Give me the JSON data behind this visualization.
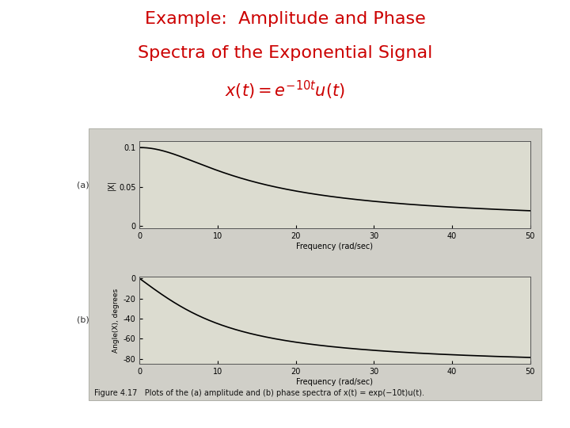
{
  "title_line1": "Example:  Amplitude and Phase",
  "title_line2": "Spectra of the Exponential Signal",
  "title_color": "#cc0000",
  "title_fontsize": 16,
  "formula": "$x(t) = e^{-10t}u(t)$",
  "formula_color": "#cc0000",
  "formula_fontsize": 15,
  "alpha": 10,
  "omega_max": 50,
  "num_points": 1000,
  "subplot_bg": "#dcdcd0",
  "fig_bg": "#ffffff",
  "outer_box_bg": "#d0cfc8",
  "line_color": "#000000",
  "line_width": 1.2,
  "amp_ylabel": "|X|",
  "amp_label_prefix": "(a)",
  "amp_yticks": [
    0,
    0.05,
    0.1
  ],
  "amp_ylim": [
    -0.003,
    0.108
  ],
  "amp_xlim": [
    0,
    50
  ],
  "phase_ylabel": "Angle(X), degrees",
  "phase_label_prefix": "(b)",
  "phase_yticks": [
    0,
    -20,
    -40,
    -60,
    -80
  ],
  "phase_ylim": [
    -85,
    2
  ],
  "phase_xlim": [
    0,
    50
  ],
  "xlabel": "Frequency (rad/sec)",
  "xticks": [
    0,
    10,
    20,
    30,
    40,
    50
  ],
  "caption": "Figure 4.17   Plots of the (a) amplitude and (b) phase spectra of x(t) = exp(−10t)u(t).",
  "caption_fontsize": 7
}
